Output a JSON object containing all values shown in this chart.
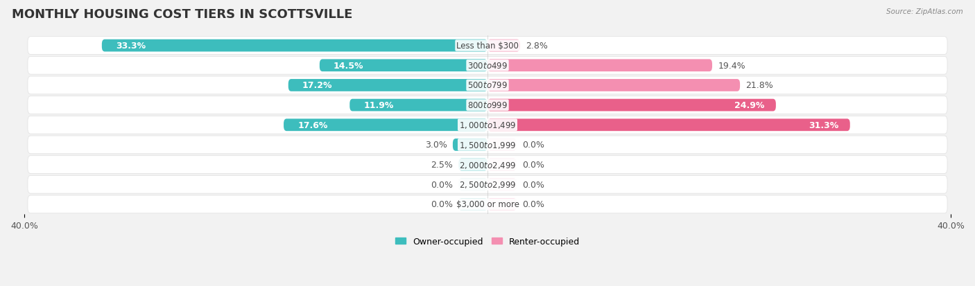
{
  "title": "MONTHLY HOUSING COST TIERS IN SCOTTSVILLE",
  "source": "Source: ZipAtlas.com",
  "categories": [
    "Less than $300",
    "$300 to $499",
    "$500 to $799",
    "$800 to $999",
    "$1,000 to $1,499",
    "$1,500 to $1,999",
    "$2,000 to $2,499",
    "$2,500 to $2,999",
    "$3,000 or more"
  ],
  "owner_values": [
    33.3,
    14.5,
    17.2,
    11.9,
    17.6,
    3.0,
    2.5,
    0.0,
    0.0
  ],
  "renter_values": [
    2.8,
    19.4,
    21.8,
    24.9,
    31.3,
    0.0,
    0.0,
    0.0,
    0.0
  ],
  "owner_color": "#3DBDBD",
  "renter_color": "#F48FB1",
  "renter_color_dark": "#E9608A",
  "bg_light": "#f7f7f7",
  "bg_dark": "#eeeeee",
  "row_outline": "#dddddd",
  "axis_max": 40.0,
  "title_fontsize": 13,
  "label_fontsize": 9,
  "tick_fontsize": 9,
  "category_fontsize": 8.5,
  "min_stub": 2.5
}
